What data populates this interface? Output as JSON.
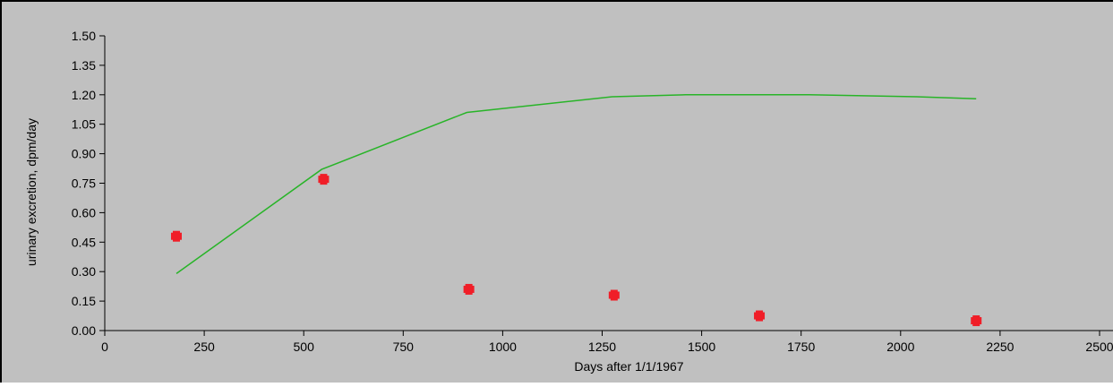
{
  "chart_data": {
    "type": "scatter",
    "title": "",
    "xlabel": "Days after 1/1/1967",
    "ylabel": "urinary excretion, dpm/day",
    "xlim": [
      0,
      2500
    ],
    "ylim": [
      0,
      1.5
    ],
    "xticks": [
      0,
      250,
      500,
      750,
      1000,
      1250,
      1500,
      1750,
      2000,
      2250,
      2500
    ],
    "xtick_labels": [
      "0",
      "250",
      "500",
      "750",
      "1000",
      "1250",
      "1500",
      "1750",
      "2000",
      "2250",
      "2500"
    ],
    "yticks": [
      0,
      0.15,
      0.3,
      0.45,
      0.6,
      0.75,
      0.9,
      1.05,
      1.2,
      1.35,
      1.5
    ],
    "ytick_labels": [
      "0.00",
      "0.15",
      "0.30",
      "0.45",
      "0.60",
      "0.75",
      "0.90",
      "1.05",
      "1.20",
      "1.35",
      "1.50"
    ],
    "grid": false,
    "background": "#c0c0c0",
    "series": [
      {
        "kind": "line",
        "color": "#28b428",
        "x": [
          180,
          545,
          910,
          1275,
          1460,
          1770,
          2040,
          2190
        ],
        "y": [
          0.29,
          0.82,
          1.11,
          1.19,
          1.2,
          1.2,
          1.19,
          1.18
        ]
      },
      {
        "kind": "scatter",
        "color": "#f01e28",
        "x": [
          180,
          550,
          915,
          1280,
          1645,
          2190
        ],
        "y": [
          0.48,
          0.77,
          0.21,
          0.18,
          0.075,
          0.05
        ]
      }
    ]
  }
}
